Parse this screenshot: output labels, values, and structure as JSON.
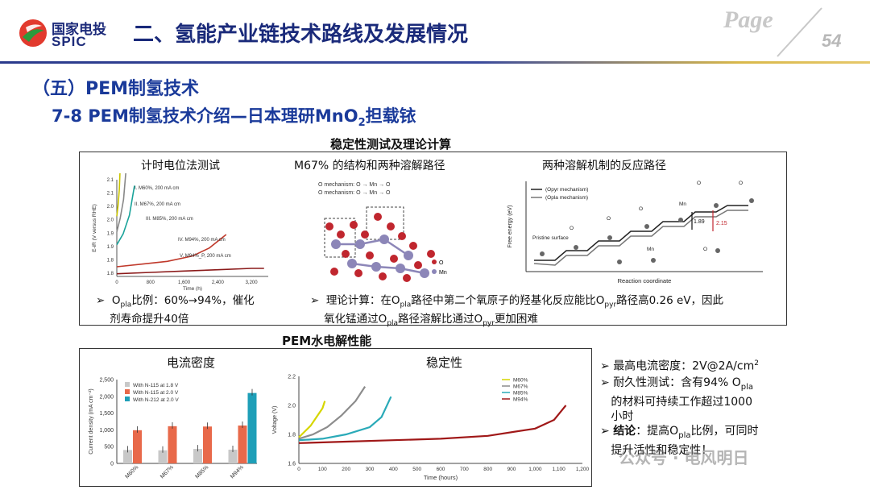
{
  "header": {
    "logo_cn": "国家电投",
    "logo_en": "SPIC",
    "title": "二、氢能产业链技术路线及发展情况",
    "page_word": "Page",
    "page_number": "54"
  },
  "section_title": "（五）PEM制氢技术",
  "subtitle_prefix": "7-8 PEM制氢技术介绍—日本理研MnO",
  "subtitle_sub": "2",
  "subtitle_suffix": "担载铱",
  "box1": {
    "heading": "稳定性测试及理论计算",
    "panel1_title": "计时电位法测试",
    "panel2_title": "M67% 的结构和两种溶解路径",
    "panel3_title": "两种溶解机制的反应路径",
    "note1_a": "O",
    "note1_sub": "pla",
    "note1_b": "比例：60%→94%，催化",
    "note1_c": "剂寿命提升40倍",
    "note2_a": "理论计算：在O",
    "note2_sub1": "pla",
    "note2_b": "路径中第二个氧原子的羟基化反应能比O",
    "note2_sub2": "pyr",
    "note2_c": "路径高0.26 eV，因此",
    "note2_d": "氧化锰通过O",
    "note2_sub3": "pla",
    "note2_e": "路径溶解比通过O",
    "note2_sub4": "pyr",
    "note2_f": "更加困难",
    "struct_legend_o": "O",
    "struct_legend_mn": "Mn",
    "struct_mech1": "O",
    "struct_mech2": "O",
    "struct_label_opl": "O",
    "struct_label_opy": "O",
    "struct_label_mn": "Mn",
    "struct_mech1_text": "O  mechanism: O → Mn → O",
    "struct_mech2_text": "O  mechanism: O → Mn → O"
  },
  "box2": {
    "heading": "PEM水电解性能",
    "panel1_title": "电流密度",
    "panel2_title": "稳定性"
  },
  "right_notes": {
    "n1": "最高电流密度：2V@2A/cm",
    "n1_sup": "2",
    "n2_a": "耐久性测试：含有94% O",
    "n2_sub": "pla",
    "n2_b": "的材料可持续工作超过1000",
    "n2_c": "小时",
    "n3_bold": "结论",
    "n3_a": "：提高O",
    "n3_sub": "pla",
    "n3_b": "比例，可同时",
    "n3_c": "提升活性和稳定性！"
  },
  "watermark": "公众号 · 电风明日",
  "chart_data": [
    {
      "type": "line",
      "title": "计时电位法测试",
      "xlabel": "Time (h)",
      "ylabel": "E-iR (V versus RHE)",
      "x_ticks": [
        "0",
        "800",
        "1,600",
        "2,400",
        "3,200"
      ],
      "y_ticks": [
        "1.8",
        "1.8",
        "1.9",
        "1.9",
        "2.0",
        "2.0",
        "2.1",
        "2.1"
      ],
      "series": [
        {
          "name": "I. M60%, 200 mA cm",
          "color": "#c9c400",
          "x": [
            0,
            30,
            60,
            90
          ],
          "y": [
            1.88,
            1.92,
            1.98,
            2.1
          ]
        },
        {
          "name": "II. M67%, 200 mA cm",
          "color": "#888888",
          "x": [
            0,
            80,
            160,
            230
          ],
          "y": [
            1.85,
            1.9,
            1.97,
            2.1
          ]
        },
        {
          "name": "III. M85%, 200 mA cm",
          "color": "#1aa39a",
          "x": [
            0,
            150,
            300,
            420
          ],
          "y": [
            1.83,
            1.87,
            1.94,
            2.05
          ]
        },
        {
          "name": "IV. M94%, 200 mA cm",
          "color": "#c0392b",
          "x": [
            0,
            600,
            1200,
            1800,
            2200,
            2600
          ],
          "y": [
            1.78,
            1.79,
            1.8,
            1.82,
            1.85,
            1.9
          ]
        },
        {
          "name": "V. M94%_P, 200 mA cm",
          "color": "#8b1a1a",
          "x": [
            0,
            800,
            1600,
            2400,
            3200,
            3500
          ],
          "y": [
            1.77,
            1.775,
            1.78,
            1.785,
            1.79,
            1.79
          ]
        }
      ]
    },
    {
      "type": "line",
      "title": "两种溶解机制的反应路径",
      "xlabel": "Reaction coordinate",
      "ylabel": "Free energy (eV)",
      "series": [
        {
          "name": "(Opyr mechanism)"
        },
        {
          "name": "(Opla mechanism)"
        }
      ],
      "labels": [
        "Pristine surface",
        "O",
        "O",
        "O",
        "Mn",
        "Mn",
        "O",
        "O",
        "O"
      ],
      "annotations": [
        "1.89",
        "2.15"
      ]
    },
    {
      "type": "bar",
      "title": "电流密度",
      "categories": [
        "M60%",
        "M67%",
        "M85%",
        "M94%"
      ],
      "ylabel": "Current density (mA cm⁻²)",
      "y_ticks": [
        "0",
        "500",
        "1,000",
        "1,500",
        "2,000",
        "2,500"
      ],
      "series": [
        {
          "name": "With N-115 at 1.8 V",
          "color": "#c8c8c8",
          "values": [
            400,
            390,
            430,
            410
          ]
        },
        {
          "name": "With N-115 at 2.0 V",
          "color": "#e8694a",
          "values": [
            990,
            1110,
            1100,
            1130
          ]
        },
        {
          "name": "With N-212 at 2.0 V",
          "color": "#1e9fb8",
          "values": [
            null,
            null,
            null,
            2100
          ]
        }
      ],
      "ylim": [
        0,
        2500
      ]
    },
    {
      "type": "line",
      "title": "稳定性",
      "xlabel": "Time (hours)",
      "ylabel": "Voltage (V)",
      "x_ticks": [
        "0",
        "100",
        "200",
        "300",
        "400",
        "500",
        "600",
        "700",
        "800",
        "900",
        "1,000",
        "1,100",
        "1,200"
      ],
      "y_ticks": [
        "1.6",
        "1.8",
        "2.0",
        "2.2"
      ],
      "xlim": [
        0,
        1200
      ],
      "ylim": [
        1.6,
        2.2
      ],
      "series": [
        {
          "name": "M60%",
          "color": "#d6d600",
          "x": [
            0,
            25,
            50,
            75,
            100,
            110
          ],
          "y": [
            1.78,
            1.82,
            1.86,
            1.92,
            1.98,
            2.03
          ]
        },
        {
          "name": "M67%",
          "color": "#8c8c8c",
          "x": [
            0,
            60,
            120,
            180,
            240,
            280
          ],
          "y": [
            1.77,
            1.8,
            1.85,
            1.93,
            2.03,
            2.13
          ]
        },
        {
          "name": "M85%",
          "color": "#2aaab8",
          "x": [
            0,
            100,
            200,
            300,
            350,
            390
          ],
          "y": [
            1.76,
            1.77,
            1.8,
            1.85,
            1.92,
            2.06
          ]
        },
        {
          "name": "M94%",
          "color": "#a01818",
          "x": [
            0,
            200,
            400,
            600,
            800,
            1000,
            1080,
            1130
          ],
          "y": [
            1.74,
            1.75,
            1.76,
            1.77,
            1.79,
            1.84,
            1.9,
            2.0
          ]
        }
      ]
    }
  ]
}
